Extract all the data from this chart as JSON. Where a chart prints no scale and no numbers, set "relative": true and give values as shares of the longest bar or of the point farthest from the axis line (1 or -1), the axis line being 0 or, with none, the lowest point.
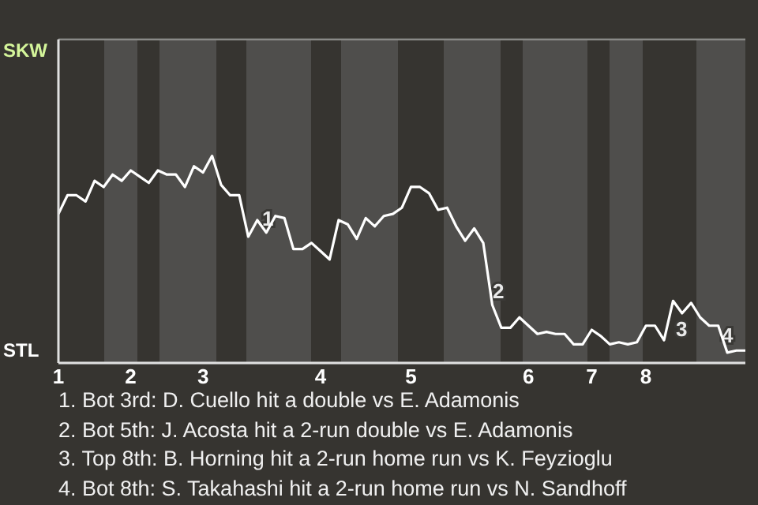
{
  "chart_data": {
    "type": "line",
    "relative": true,
    "categories": [
      "1",
      null,
      null,
      null,
      null,
      null,
      null,
      null,
      "2",
      null,
      null,
      null,
      null,
      null,
      null,
      null,
      "3",
      null,
      null,
      null,
      null,
      null,
      null,
      null,
      null,
      null,
      null,
      null,
      null,
      "4",
      null,
      null,
      null,
      null,
      null,
      null,
      null,
      null,
      null,
      "5",
      null,
      null,
      null,
      null,
      null,
      null,
      null,
      null,
      null,
      null,
      null,
      null,
      "6",
      null,
      null,
      null,
      null,
      null,
      null,
      "7",
      null,
      null,
      null,
      null,
      null,
      "8",
      null,
      null,
      null,
      null,
      null,
      null,
      null,
      null,
      null,
      null,
      null
    ],
    "series": [
      {
        "color": "#ffffff",
        "values": [
          0.72,
          0.81,
          0.81,
          0.78,
          0.88,
          0.85,
          0.91,
          0.88,
          0.93,
          0.9,
          0.87,
          0.93,
          0.91,
          0.91,
          0.85,
          0.95,
          0.92,
          1,
          0.86,
          0.81,
          0.81,
          0.61,
          0.69,
          0.63,
          0.71,
          0.7,
          0.55,
          0.55,
          0.58,
          0.54,
          0.5,
          0.69,
          0.67,
          0.6,
          0.7,
          0.66,
          0.71,
          0.72,
          0.75,
          0.85,
          0.85,
          0.82,
          0.74,
          0.75,
          0.66,
          0.59,
          0.65,
          0.58,
          0.28,
          0.17,
          0.17,
          0.22,
          0.18,
          0.14,
          0.15,
          0.14,
          0.14,
          0.09,
          0.09,
          0.16,
          0.13,
          0.09,
          0.1,
          0.09,
          0.1,
          0.18,
          0.18,
          0.11,
          0.3,
          0.24,
          0.29,
          0.22,
          0.18,
          0.18,
          0.05,
          0.06,
          0.06
        ]
      }
    ],
    "ylim": [
      0,
      1.5625
    ],
    "grid": "y",
    "marker": "none",
    "line_style": "solid",
    "legend": false,
    "annotations": [
      "SKW",
      "STL",
      "1",
      "2",
      "3",
      "4",
      "1. Bot 3rd: D. Cuello hit a double vs E. Adamonis",
      "2. Bot 5th: J. Acosta hit a 2-run double vs E. Adamonis",
      "3. Top 8th: B. Horning hit a 2-run home run vs K. Feyzioglu",
      "4. Bot 8th: S. Takahashi hit a 2-run home run vs N. Sandhoff"
    ]
  }
}
